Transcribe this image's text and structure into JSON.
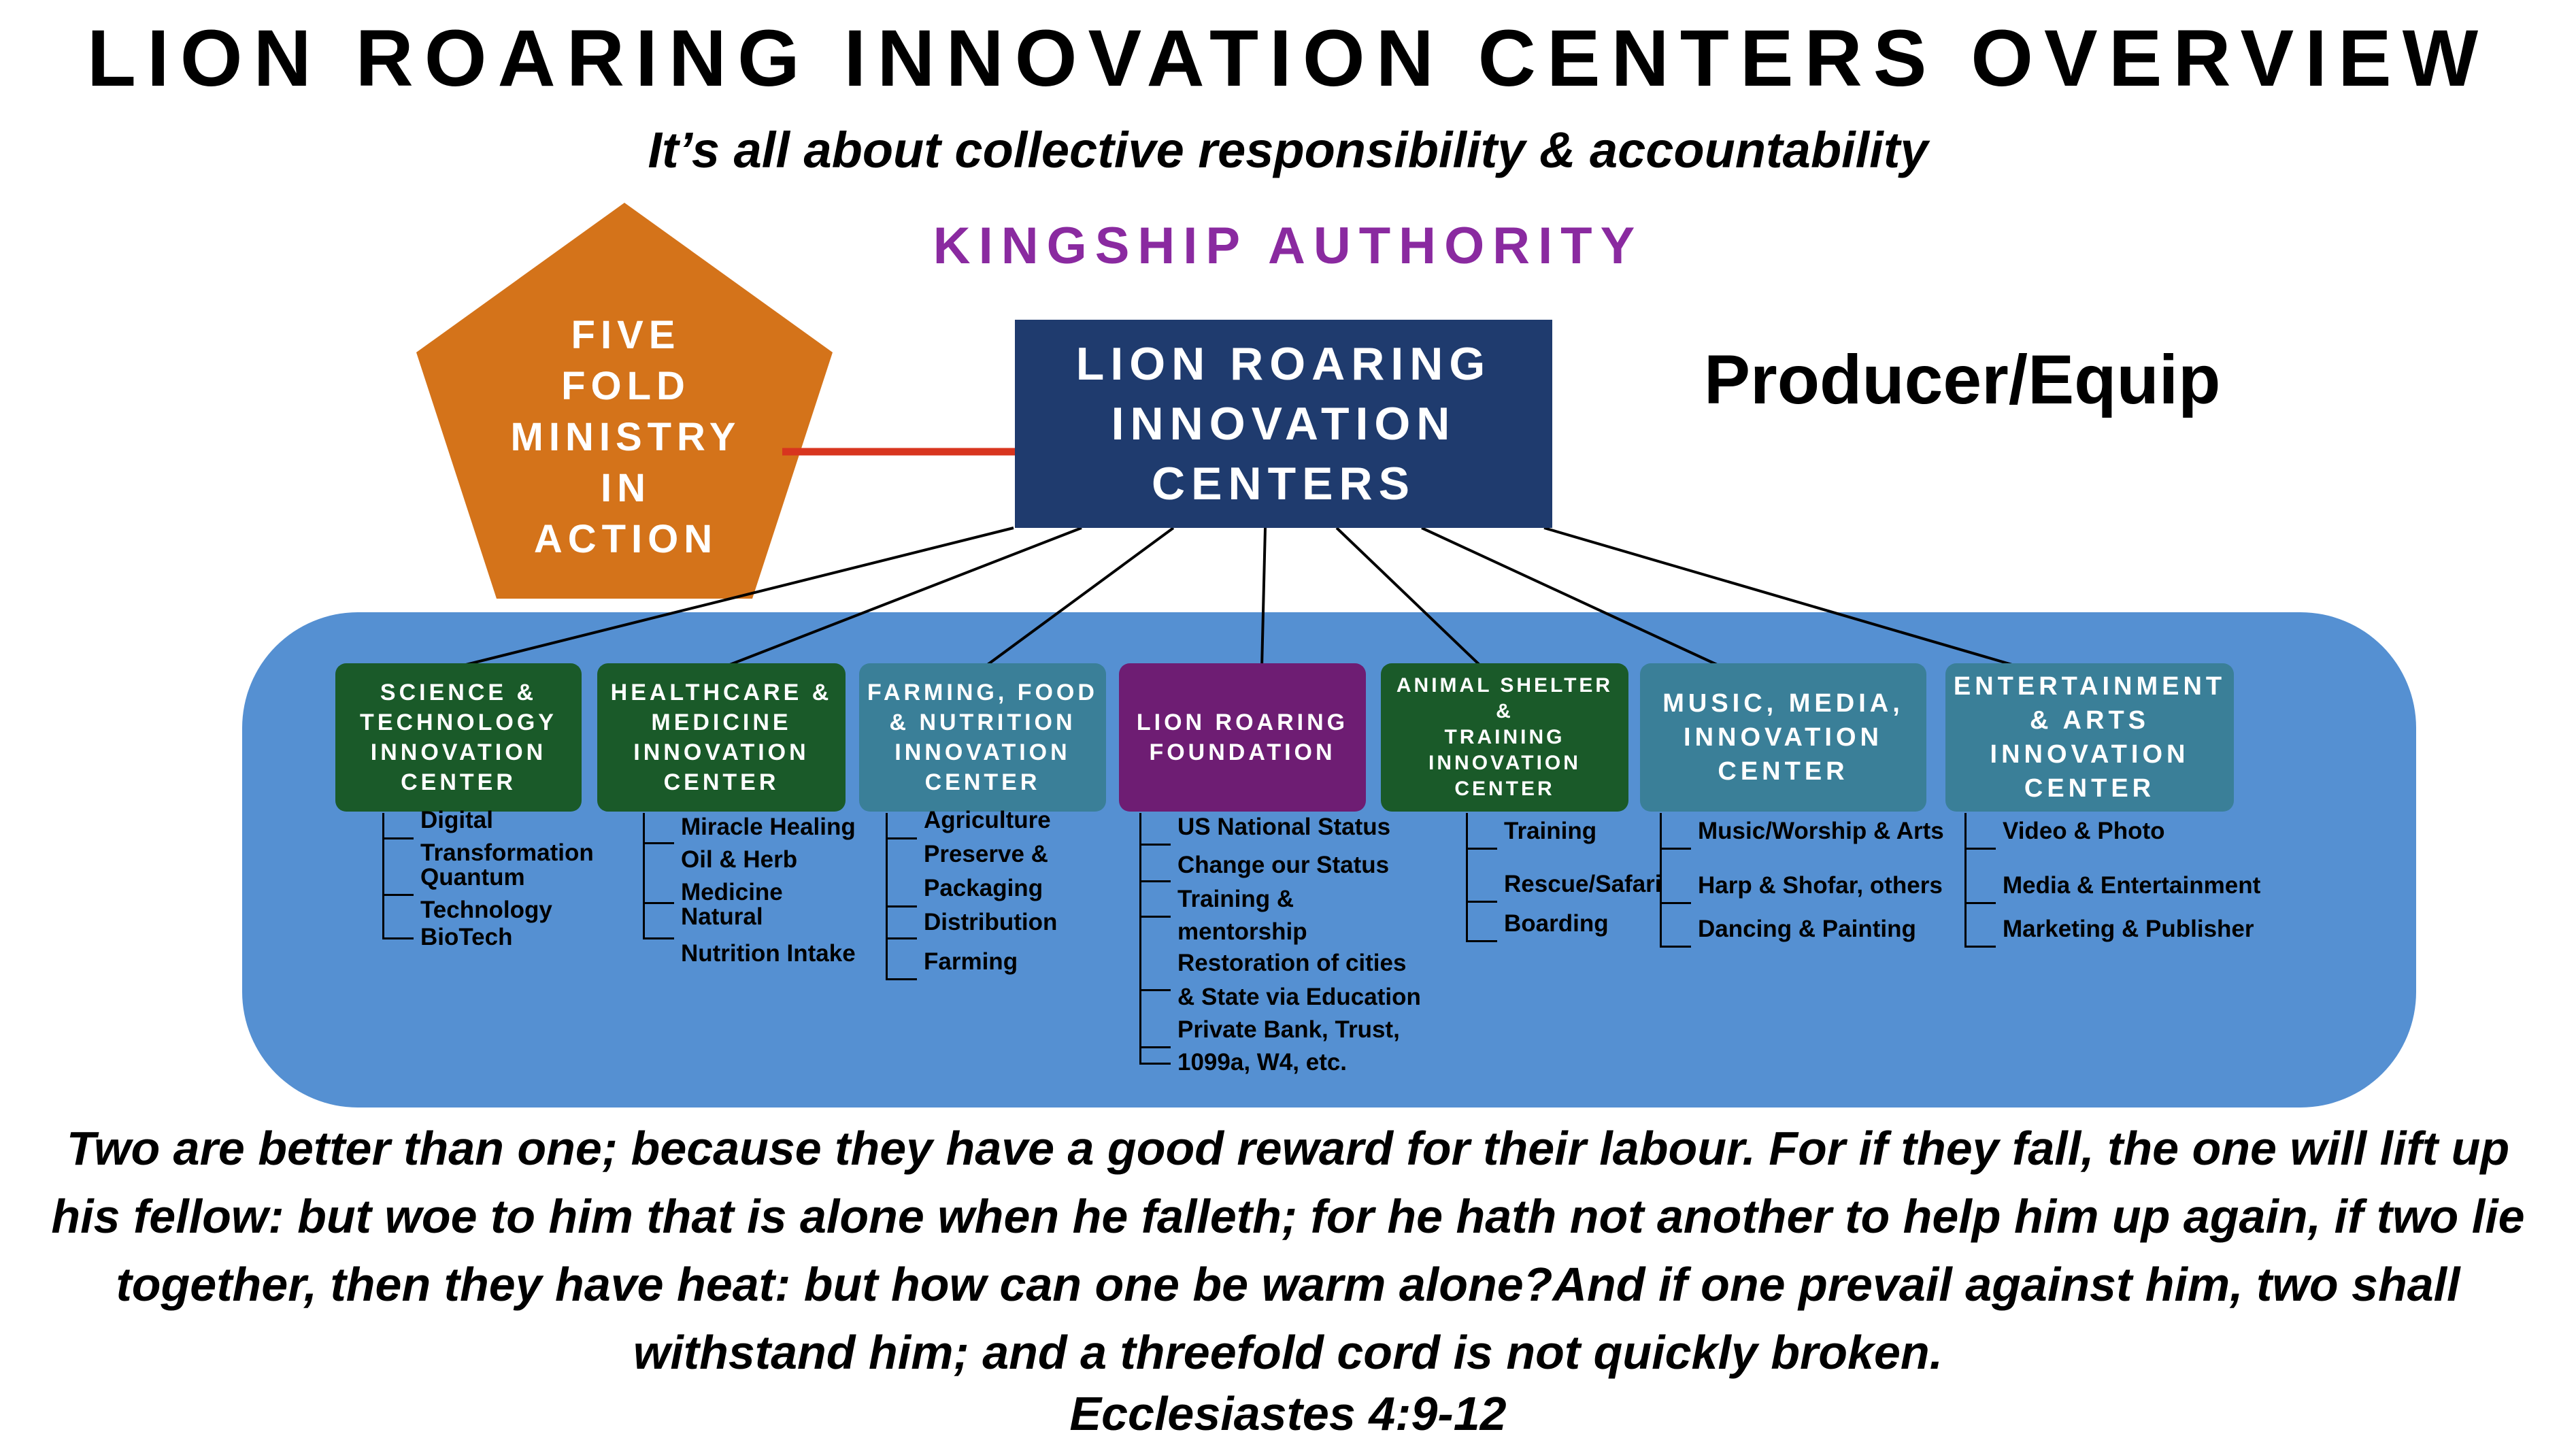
{
  "title": "LION ROARING INNOVATION CENTERS OVERVIEW",
  "subtitle": "It’s all about collective responsibility & accountability",
  "kingship": "KINGSHIP AUTHORITY",
  "pentagon": {
    "lines": [
      "FIVE",
      "FOLD",
      "MINISTRY",
      "IN",
      "ACTION"
    ],
    "color": "#d4731a"
  },
  "main_box": {
    "lines": [
      "LION ROARING",
      "INNOVATION",
      "CENTERS"
    ],
    "color": "#1f3b6e"
  },
  "producer": "Producer/Equip",
  "band_color": "#5590d2",
  "centers": [
    {
      "lines": [
        "SCIENCE &",
        "TECHNOLOGY",
        "INNOVATION",
        "CENTER"
      ],
      "color": "green",
      "items": [
        "Digital",
        "Transformation",
        "Quantum",
        "Technology",
        "BioTech"
      ]
    },
    {
      "lines": [
        "HEALTHCARE &",
        "MEDICINE",
        "INNOVATION",
        "CENTER"
      ],
      "color": "green",
      "items": [
        "Miracle Healing",
        "Oil & Herb",
        "Medicine",
        "Natural",
        "Nutrition Intake"
      ]
    },
    {
      "lines": [
        "FARMING, FOOD",
        "& NUTRITION",
        "INNOVATION",
        "CENTER"
      ],
      "color": "teal",
      "items": [
        "Agriculture",
        "Preserve &",
        "Packaging",
        "Distribution",
        "Farming"
      ]
    },
    {
      "lines": [
        "LION ROARING",
        "FOUNDATION"
      ],
      "color": "purple",
      "items": [
        "US National Status",
        "Change our Status",
        "Training &",
        "mentorship",
        "Restoration of cities",
        "& State via Education",
        "Private Bank, Trust,",
        "1099a, W4, etc."
      ]
    },
    {
      "lines": [
        "ANIMAL SHELTER &",
        "TRAINING",
        "INNOVATION",
        "CENTER"
      ],
      "color": "green",
      "items": [
        "Training",
        "Rescue/Safari",
        "Boarding"
      ]
    },
    {
      "lines": [
        "MUSIC, MEDIA,",
        "INNOVATION",
        "CENTER"
      ],
      "color": "teal",
      "items": [
        "Music/Worship & Arts",
        "Harp & Shofar, others",
        "Dancing & Painting"
      ]
    },
    {
      "lines": [
        "ENTERTAINMENT",
        "& ARTS",
        "INNOVATION",
        "CENTER"
      ],
      "color": "teal",
      "items": [
        "Video & Photo",
        "Media & Entertainment",
        "Marketing & Publisher"
      ]
    }
  ],
  "verse": "Two are better than one; because they have a good reward for their labour. For if they fall, the one will lift up his fellow: but woe to him that is alone when he falleth; for he hath not another to help him up again, if two lie together, then they have heat: but how can one be warm alone?And if one prevail against him, two shall withstand him; and a threefold cord is not quickly broken.",
  "reference": "Ecclesiastes 4:9-12"
}
